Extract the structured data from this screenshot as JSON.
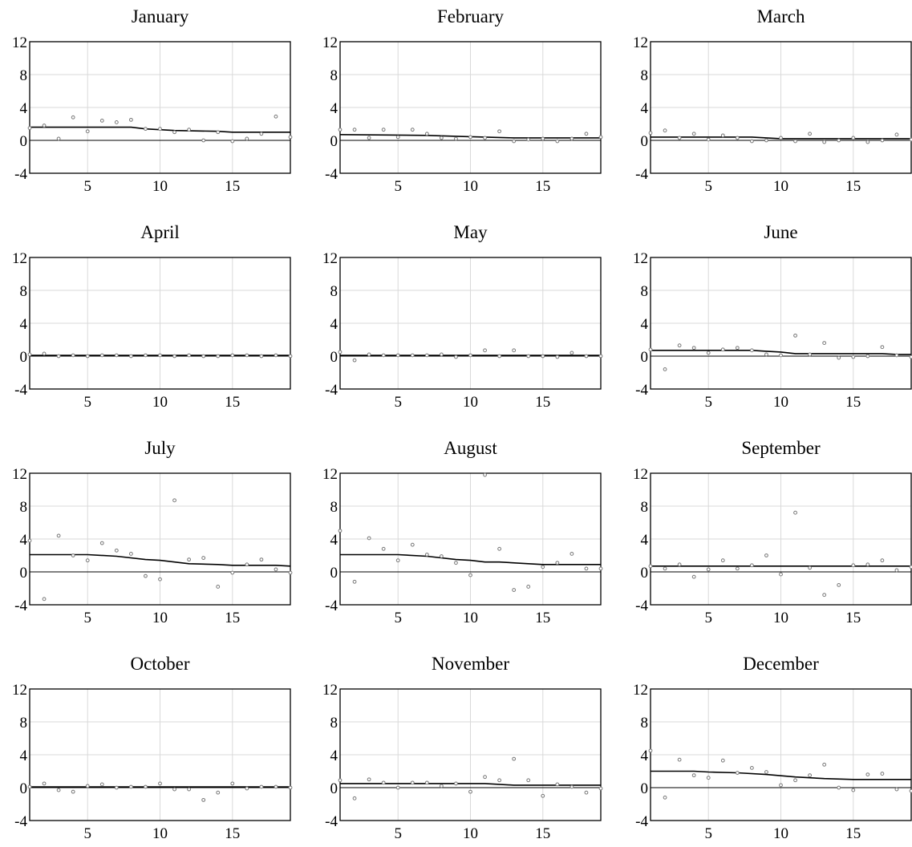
{
  "colors": {
    "smooth_line": "#000000",
    "points": "#777777",
    "grid": "#d9d9d9",
    "zero_line": "#000000"
  },
  "chart_data": [
    {
      "type": "scatter",
      "title": "January",
      "xlim": [
        1,
        19
      ],
      "ylim": [
        -4,
        12
      ],
      "xticks": [
        5,
        10,
        15
      ],
      "yticks": [
        -4,
        0,
        4,
        8,
        12
      ],
      "grid": true,
      "points": [
        [
          1,
          1.5
        ],
        [
          2,
          1.8
        ],
        [
          3,
          0.2
        ],
        [
          4,
          2.8
        ],
        [
          5,
          1.1
        ],
        [
          6,
          2.4
        ],
        [
          7,
          2.2
        ],
        [
          8,
          2.5
        ],
        [
          9,
          1.4
        ],
        [
          10,
          1.4
        ],
        [
          11,
          1.0
        ],
        [
          12,
          1.3
        ],
        [
          13,
          0.0
        ],
        [
          14,
          1.0
        ],
        [
          15,
          -0.1
        ],
        [
          16,
          0.2
        ],
        [
          17,
          0.8
        ],
        [
          18,
          2.9
        ],
        [
          19,
          0.4
        ]
      ],
      "smooth": [
        [
          1,
          1.6
        ],
        [
          8,
          1.6
        ],
        [
          9,
          1.4
        ],
        [
          11,
          1.2
        ],
        [
          14,
          1.1
        ],
        [
          15,
          1.0
        ],
        [
          19,
          1.0
        ]
      ]
    },
    {
      "type": "scatter",
      "title": "February",
      "xlim": [
        1,
        19
      ],
      "ylim": [
        -4,
        12
      ],
      "xticks": [
        5,
        10,
        15
      ],
      "yticks": [
        -4,
        0,
        4,
        8,
        12
      ],
      "grid": true,
      "points": [
        [
          1,
          1.3
        ],
        [
          2,
          1.3
        ],
        [
          3,
          0.3
        ],
        [
          4,
          1.3
        ],
        [
          5,
          0.4
        ],
        [
          6,
          1.3
        ],
        [
          7,
          0.8
        ],
        [
          8,
          0.3
        ],
        [
          9,
          0.2
        ],
        [
          10,
          0.4
        ],
        [
          11,
          0.3
        ],
        [
          12,
          1.1
        ],
        [
          13,
          -0.1
        ],
        [
          14,
          0.1
        ],
        [
          15,
          0.2
        ],
        [
          16,
          -0.1
        ],
        [
          17,
          0.2
        ],
        [
          18,
          0.8
        ],
        [
          19,
          0.4
        ]
      ],
      "smooth": [
        [
          1,
          0.7
        ],
        [
          7,
          0.6
        ],
        [
          9,
          0.5
        ],
        [
          11,
          0.4
        ],
        [
          13,
          0.3
        ],
        [
          19,
          0.3
        ]
      ]
    },
    {
      "type": "scatter",
      "title": "March",
      "xlim": [
        1,
        19
      ],
      "ylim": [
        -4,
        12
      ],
      "xticks": [
        5,
        10,
        15
      ],
      "yticks": [
        -4,
        0,
        4,
        8,
        12
      ],
      "grid": true,
      "points": [
        [
          1,
          0.9
        ],
        [
          2,
          1.2
        ],
        [
          3,
          0.3
        ],
        [
          4,
          0.8
        ],
        [
          5,
          0.1
        ],
        [
          6,
          0.6
        ],
        [
          7,
          0.3
        ],
        [
          8,
          -0.1
        ],
        [
          9,
          0.0
        ],
        [
          10,
          0.3
        ],
        [
          11,
          -0.1
        ],
        [
          12,
          0.8
        ],
        [
          13,
          -0.2
        ],
        [
          14,
          0.0
        ],
        [
          15,
          0.3
        ],
        [
          16,
          -0.2
        ],
        [
          17,
          0.0
        ],
        [
          18,
          0.7
        ],
        [
          19,
          0.1
        ]
      ],
      "smooth": [
        [
          1,
          0.4
        ],
        [
          8,
          0.4
        ],
        [
          10,
          0.2
        ],
        [
          19,
          0.2
        ]
      ]
    },
    {
      "type": "scatter",
      "title": "April",
      "xlim": [
        1,
        19
      ],
      "ylim": [
        -4,
        12
      ],
      "xticks": [
        5,
        10,
        15
      ],
      "yticks": [
        -4,
        0,
        4,
        8,
        12
      ],
      "grid": true,
      "points": [
        [
          1,
          0.2
        ],
        [
          2,
          0.3
        ],
        [
          3,
          0.0
        ],
        [
          4,
          0.1
        ],
        [
          5,
          0.0
        ],
        [
          6,
          0.1
        ],
        [
          7,
          0.1
        ],
        [
          8,
          0.0
        ],
        [
          9,
          0.1
        ],
        [
          10,
          0.1
        ],
        [
          11,
          0.0
        ],
        [
          12,
          0.1
        ],
        [
          13,
          0.0
        ],
        [
          14,
          0.0
        ],
        [
          15,
          0.1
        ],
        [
          16,
          0.1
        ],
        [
          17,
          0.0
        ],
        [
          18,
          0.1
        ],
        [
          19,
          0.0
        ]
      ],
      "smooth": [
        [
          1,
          0.1
        ],
        [
          19,
          0.1
        ]
      ]
    },
    {
      "type": "scatter",
      "title": "May",
      "xlim": [
        1,
        19
      ],
      "ylim": [
        -4,
        12
      ],
      "xticks": [
        5,
        10,
        15
      ],
      "yticks": [
        -4,
        0,
        4,
        8,
        12
      ],
      "grid": true,
      "points": [
        [
          1,
          0.5
        ],
        [
          2,
          -0.5
        ],
        [
          3,
          0.2
        ],
        [
          4,
          0.1
        ],
        [
          5,
          0.1
        ],
        [
          6,
          0.1
        ],
        [
          7,
          0.1
        ],
        [
          8,
          0.2
        ],
        [
          9,
          -0.1
        ],
        [
          10,
          0.1
        ],
        [
          11,
          0.7
        ],
        [
          12,
          0.0
        ],
        [
          13,
          0.7
        ],
        [
          14,
          0.0
        ],
        [
          15,
          0.0
        ],
        [
          16,
          -0.1
        ],
        [
          17,
          0.4
        ],
        [
          18,
          0.0
        ],
        [
          19,
          0.0
        ]
      ],
      "smooth": [
        [
          1,
          0.1
        ],
        [
          19,
          0.1
        ]
      ]
    },
    {
      "type": "scatter",
      "title": "June",
      "xlim": [
        1,
        19
      ],
      "ylim": [
        -4,
        12
      ],
      "xticks": [
        5,
        10,
        15
      ],
      "yticks": [
        -4,
        0,
        4,
        8,
        12
      ],
      "grid": true,
      "points": [
        [
          1,
          0.8
        ],
        [
          2,
          -1.6
        ],
        [
          3,
          1.3
        ],
        [
          4,
          1.0
        ],
        [
          5,
          0.4
        ],
        [
          6,
          0.8
        ],
        [
          7,
          1.0
        ],
        [
          8,
          0.7
        ],
        [
          9,
          0.2
        ],
        [
          10,
          0.1
        ],
        [
          11,
          2.5
        ],
        [
          12,
          0.2
        ],
        [
          13,
          1.6
        ],
        [
          14,
          -0.2
        ],
        [
          15,
          -0.1
        ],
        [
          16,
          0.0
        ],
        [
          17,
          1.1
        ],
        [
          18,
          0.1
        ],
        [
          19,
          -0.1
        ]
      ],
      "smooth": [
        [
          1,
          0.7
        ],
        [
          8,
          0.7
        ],
        [
          9,
          0.6
        ],
        [
          10,
          0.5
        ],
        [
          11,
          0.3
        ],
        [
          17,
          0.3
        ],
        [
          18,
          0.2
        ],
        [
          19,
          0.2
        ]
      ]
    },
    {
      "type": "scatter",
      "title": "July",
      "xlim": [
        1,
        19
      ],
      "ylim": [
        -4,
        12
      ],
      "xticks": [
        5,
        10,
        15
      ],
      "yticks": [
        -4,
        0,
        4,
        8,
        12
      ],
      "grid": true,
      "points": [
        [
          1,
          3.8
        ],
        [
          2,
          -3.3
        ],
        [
          3,
          4.4
        ],
        [
          4,
          2.0
        ],
        [
          5,
          1.4
        ],
        [
          6,
          3.5
        ],
        [
          7,
          2.6
        ],
        [
          8,
          2.2
        ],
        [
          9,
          -0.5
        ],
        [
          10,
          -0.9
        ],
        [
          11,
          8.7
        ],
        [
          12,
          1.5
        ],
        [
          13,
          1.7
        ],
        [
          14,
          -1.8
        ],
        [
          15,
          -0.1
        ],
        [
          16,
          0.9
        ],
        [
          17,
          1.5
        ],
        [
          18,
          0.3
        ],
        [
          19,
          -0.1
        ]
      ],
      "smooth": [
        [
          1,
          2.1
        ],
        [
          5,
          2.1
        ],
        [
          7,
          1.9
        ],
        [
          9,
          1.5
        ],
        [
          10,
          1.4
        ],
        [
          12,
          1.0
        ],
        [
          14,
          0.9
        ],
        [
          15,
          0.8
        ],
        [
          18,
          0.8
        ],
        [
          19,
          0.7
        ]
      ]
    },
    {
      "type": "scatter",
      "title": "August",
      "xlim": [
        1,
        19
      ],
      "ylim": [
        -4,
        12
      ],
      "xticks": [
        5,
        10,
        15
      ],
      "yticks": [
        -4,
        0,
        4,
        8,
        12
      ],
      "grid": true,
      "points": [
        [
          1,
          5.0
        ],
        [
          2,
          -1.2
        ],
        [
          3,
          4.1
        ],
        [
          4,
          2.8
        ],
        [
          5,
          1.4
        ],
        [
          6,
          3.3
        ],
        [
          7,
          2.1
        ],
        [
          8,
          1.9
        ],
        [
          9,
          1.1
        ],
        [
          10,
          -0.4
        ],
        [
          11,
          11.8
        ],
        [
          12,
          2.8
        ],
        [
          13,
          -2.2
        ],
        [
          14,
          -1.8
        ],
        [
          15,
          0.6
        ],
        [
          16,
          1.1
        ],
        [
          17,
          2.2
        ],
        [
          18,
          0.4
        ],
        [
          19,
          0.4
        ]
      ],
      "smooth": [
        [
          1,
          2.1
        ],
        [
          5,
          2.1
        ],
        [
          7,
          1.9
        ],
        [
          9,
          1.5
        ],
        [
          10,
          1.4
        ],
        [
          11,
          1.2
        ],
        [
          12,
          1.2
        ],
        [
          14,
          1.0
        ],
        [
          15,
          0.9
        ],
        [
          19,
          0.9
        ]
      ]
    },
    {
      "type": "scatter",
      "title": "September",
      "xlim": [
        1,
        19
      ],
      "ylim": [
        -4,
        12
      ],
      "xticks": [
        5,
        10,
        15
      ],
      "yticks": [
        -4,
        0,
        4,
        8,
        12
      ],
      "grid": true,
      "points": [
        [
          1,
          0.7
        ],
        [
          2,
          0.4
        ],
        [
          3,
          0.9
        ],
        [
          4,
          -0.6
        ],
        [
          5,
          0.3
        ],
        [
          6,
          1.4
        ],
        [
          7,
          0.4
        ],
        [
          8,
          0.8
        ],
        [
          9,
          2.0
        ],
        [
          10,
          -0.3
        ],
        [
          11,
          7.2
        ],
        [
          12,
          0.5
        ],
        [
          13,
          -2.8
        ],
        [
          14,
          -1.6
        ],
        [
          15,
          0.8
        ],
        [
          16,
          0.9
        ],
        [
          17,
          1.4
        ],
        [
          18,
          0.2
        ],
        [
          19,
          0.6
        ]
      ],
      "smooth": [
        [
          1,
          0.7
        ],
        [
          19,
          0.7
        ]
      ]
    },
    {
      "type": "scatter",
      "title": "October",
      "xlim": [
        1,
        19
      ],
      "ylim": [
        -4,
        12
      ],
      "xticks": [
        5,
        10,
        15
      ],
      "yticks": [
        -4,
        0,
        4,
        8,
        12
      ],
      "grid": true,
      "points": [
        [
          1,
          0.1
        ],
        [
          2,
          0.5
        ],
        [
          3,
          -0.3
        ],
        [
          4,
          -0.5
        ],
        [
          5,
          0.2
        ],
        [
          6,
          0.4
        ],
        [
          7,
          0.0
        ],
        [
          8,
          0.1
        ],
        [
          9,
          0.1
        ],
        [
          10,
          0.5
        ],
        [
          11,
          -0.2
        ],
        [
          12,
          -0.2
        ],
        [
          13,
          -1.5
        ],
        [
          14,
          -0.6
        ],
        [
          15,
          0.5
        ],
        [
          16,
          -0.1
        ],
        [
          17,
          0.1
        ],
        [
          18,
          0.1
        ],
        [
          19,
          0.0
        ]
      ],
      "smooth": [
        [
          1,
          0.1
        ],
        [
          19,
          0.1
        ]
      ]
    },
    {
      "type": "scatter",
      "title": "November",
      "xlim": [
        1,
        19
      ],
      "ylim": [
        -4,
        12
      ],
      "xticks": [
        5,
        10,
        15
      ],
      "yticks": [
        -4,
        0,
        4,
        8,
        12
      ],
      "grid": true,
      "points": [
        [
          1,
          0.9
        ],
        [
          2,
          -1.3
        ],
        [
          3,
          1.0
        ],
        [
          4,
          0.6
        ],
        [
          5,
          0.0
        ],
        [
          6,
          0.6
        ],
        [
          7,
          0.6
        ],
        [
          8,
          0.2
        ],
        [
          9,
          0.5
        ],
        [
          10,
          -0.5
        ],
        [
          11,
          1.3
        ],
        [
          12,
          0.9
        ],
        [
          13,
          3.5
        ],
        [
          14,
          0.9
        ],
        [
          15,
          -1.0
        ],
        [
          16,
          0.4
        ],
        [
          17,
          0.1
        ],
        [
          18,
          -0.6
        ],
        [
          19,
          -0.1
        ]
      ],
      "smooth": [
        [
          1,
          0.5
        ],
        [
          11,
          0.5
        ],
        [
          13,
          0.3
        ],
        [
          19,
          0.3
        ]
      ]
    },
    {
      "type": "scatter",
      "title": "December",
      "xlim": [
        1,
        19
      ],
      "ylim": [
        -4,
        12
      ],
      "xticks": [
        5,
        10,
        15
      ],
      "yticks": [
        -4,
        0,
        4,
        8,
        12
      ],
      "grid": true,
      "points": [
        [
          1,
          4.5
        ],
        [
          2,
          -1.2
        ],
        [
          3,
          3.4
        ],
        [
          4,
          1.5
        ],
        [
          5,
          1.2
        ],
        [
          6,
          3.3
        ],
        [
          7,
          1.8
        ],
        [
          8,
          2.4
        ],
        [
          9,
          1.9
        ],
        [
          10,
          0.3
        ],
        [
          11,
          0.9
        ],
        [
          12,
          1.5
        ],
        [
          13,
          2.8
        ],
        [
          14,
          0.0
        ],
        [
          15,
          -0.3
        ],
        [
          16,
          1.6
        ],
        [
          17,
          1.7
        ],
        [
          18,
          -0.2
        ],
        [
          19,
          -0.4
        ]
      ],
      "smooth": [
        [
          1,
          2.0
        ],
        [
          4,
          2.0
        ],
        [
          5,
          1.9
        ],
        [
          7,
          1.8
        ],
        [
          9,
          1.6
        ],
        [
          11,
          1.3
        ],
        [
          13,
          1.1
        ],
        [
          15,
          1.0
        ],
        [
          19,
          1.0
        ]
      ]
    }
  ]
}
